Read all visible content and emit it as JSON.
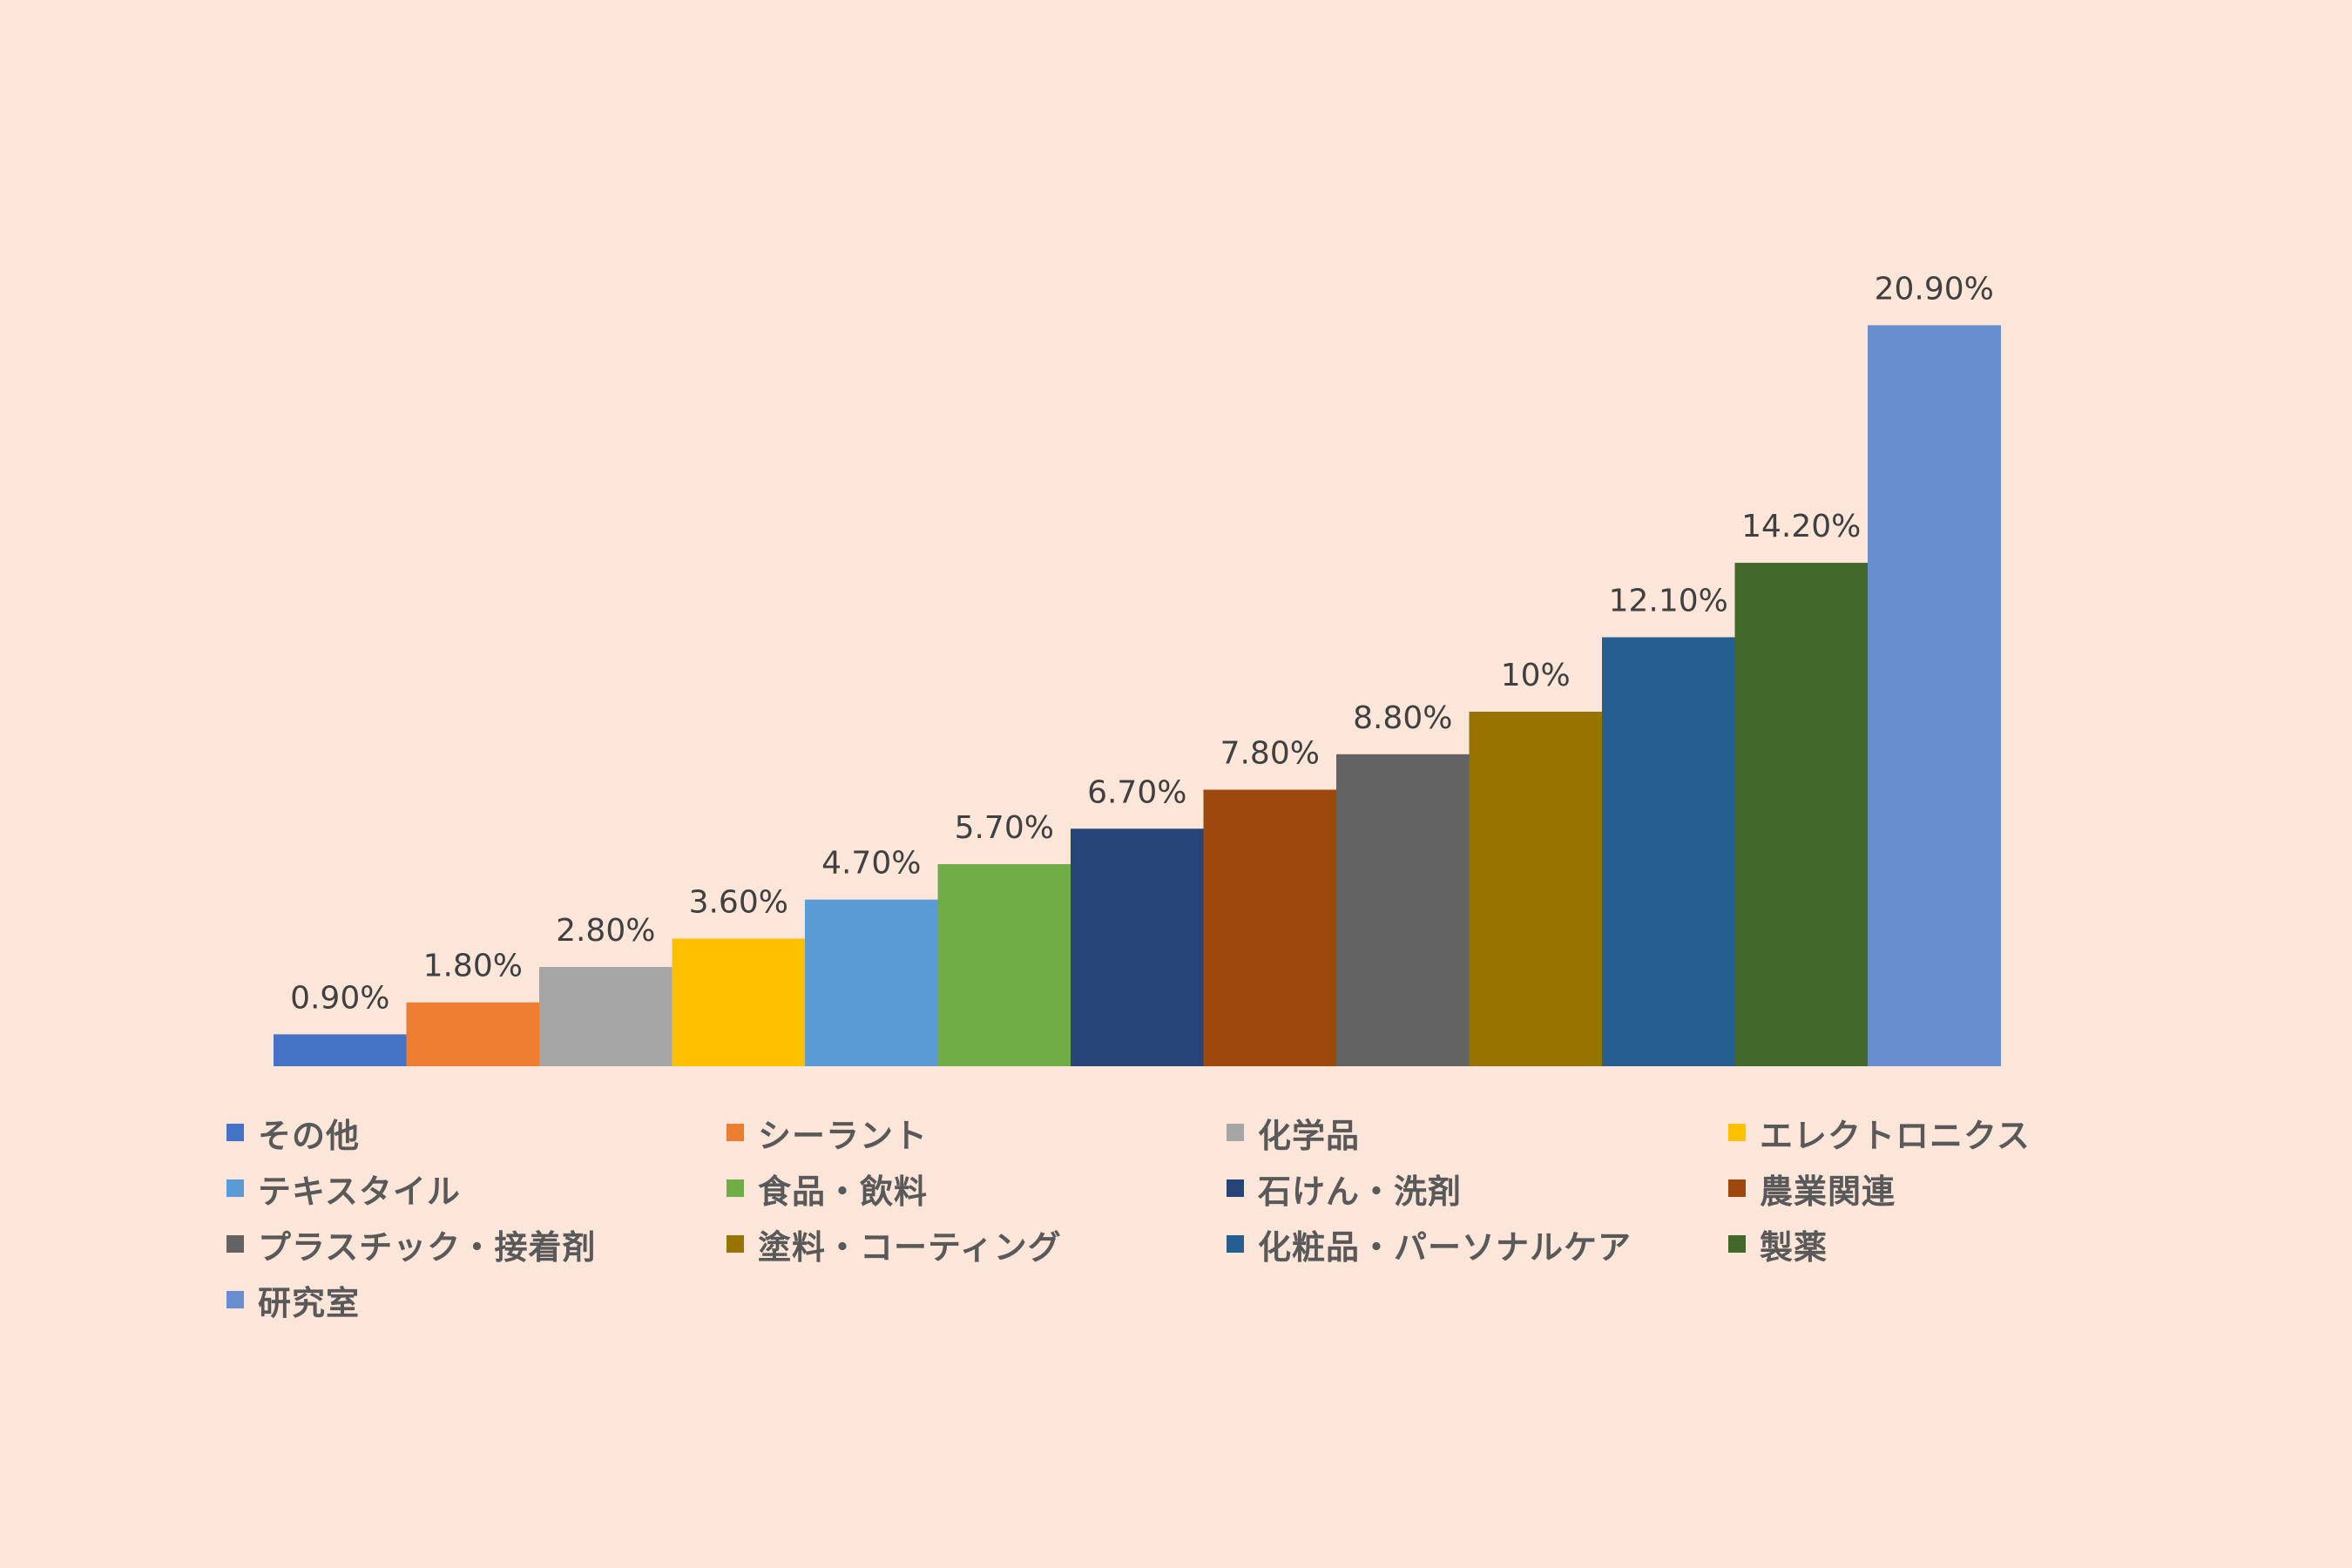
{
  "chart_data": {
    "type": "bar",
    "title": "",
    "xlabel": "",
    "ylabel": "",
    "ylim": [
      0,
      22
    ],
    "grid": false,
    "legend_position": "bottom",
    "categories": [
      "その他",
      "シーラント",
      "化学品",
      "エレクトロニクス",
      "テキスタイル",
      "食品・飲料",
      "石けん・洗剤",
      "農業関連",
      "プラスチック・接着剤",
      "塗料・コーティング",
      "化粧品・パーソナルケア",
      "製薬",
      "研究室"
    ],
    "values": [
      0.9,
      1.8,
      2.8,
      3.6,
      4.7,
      5.7,
      6.7,
      7.8,
      8.8,
      10,
      12.1,
      14.2,
      20.9
    ],
    "value_labels": [
      "0.90%",
      "1.80%",
      "2.80%",
      "3.60%",
      "4.70%",
      "5.70%",
      "6.70%",
      "7.80%",
      "8.80%",
      "10%",
      "12.10%",
      "14.20%",
      "20.90%"
    ],
    "colors": [
      "#4472c4",
      "#ed7d31",
      "#a5a5a5",
      "#ffc000",
      "#5b9bd5",
      "#70ad47",
      "#264478",
      "#9e480e",
      "#636363",
      "#997300",
      "#255e91",
      "#43682b",
      "#698ed0"
    ]
  },
  "style": {
    "background": "#fce6d9"
  }
}
